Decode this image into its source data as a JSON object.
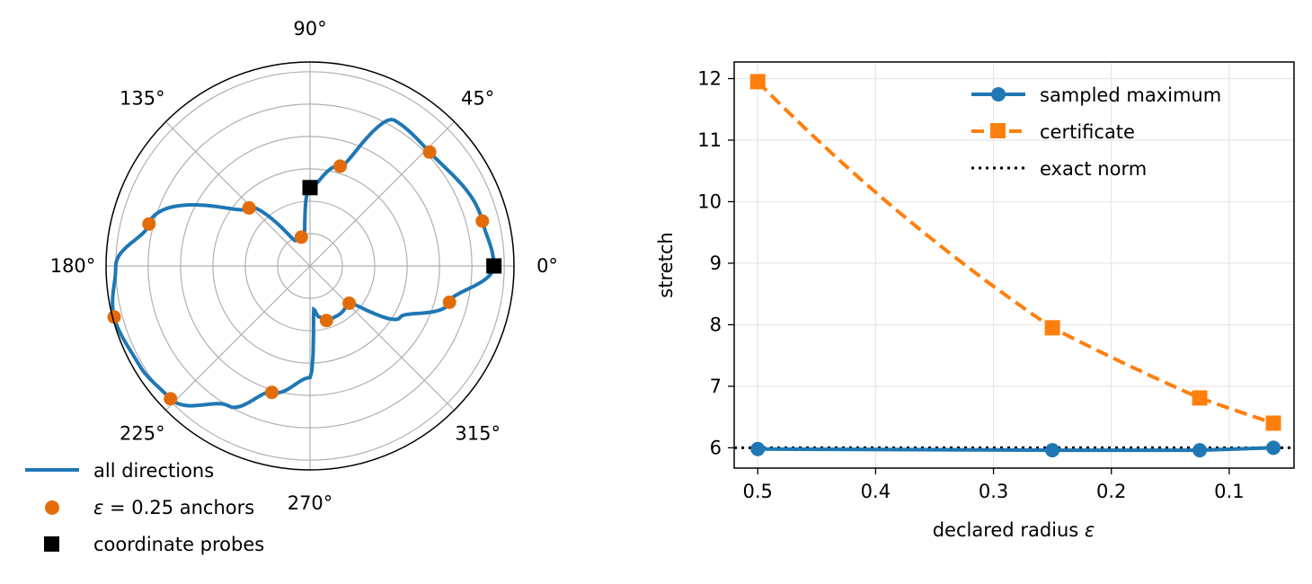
{
  "chart_data": [
    {
      "type": "polar",
      "theta_tick_labels": [
        "0°",
        "45°",
        "90°",
        "135°",
        "180°",
        "225°",
        "270°",
        "315°"
      ],
      "theta_tick_degrees": [
        0,
        45,
        90,
        135,
        180,
        225,
        270,
        315
      ],
      "r_max": 6.3,
      "r_grid": [
        1,
        2,
        3,
        4,
        5,
        6
      ],
      "series_color": "#1f77b4",
      "anchor_color": "#e36c0a",
      "probe_color": "#000000",
      "series": [
        {
          "name": "all directions",
          "kind": "line",
          "description_points_deg": [
            0,
            15,
            30,
            45,
            60,
            75,
            90,
            105,
            120,
            135,
            150,
            165,
            180,
            195,
            210,
            225,
            240,
            255,
            270,
            285,
            300,
            315,
            330,
            345,
            360
          ]
        },
        {
          "name": "ε = 0.25 anchors",
          "kind": "scatter",
          "theta_deg": [
            14.6,
            43.6,
            73.2,
            106.8,
            136.4,
            165.4,
            194.6,
            223.6,
            253.2,
            286.8,
            316.4,
            345.4
          ],
          "r": [
            5.5,
            5.1,
            3.22,
            0.93,
            2.6,
            5.14,
            6.25,
            5.95,
            4.08,
            1.76,
            1.67,
            4.45
          ]
        },
        {
          "name": "coordinate probes",
          "kind": "scatter",
          "theta_deg": [
            0,
            90
          ],
          "r": [
            5.68,
            2.42
          ]
        }
      ],
      "legend": [
        "all directions",
        "ε = 0.25 anchors",
        "coordinate probes"
      ],
      "legend_labels": {
        "line": "all directions",
        "anchors_prefix": "ε",
        "anchors_eq": " = 0.25 anchors",
        "probes": "coordinate probes"
      },
      "legend_placement": "lower-left"
    },
    {
      "type": "line",
      "xlabel_prefix": "declared radius ",
      "xlabel_symbol": "ε",
      "ylabel": "stretch",
      "x": [
        0.5,
        0.25,
        0.125,
        0.0625
      ],
      "xlim": [
        0.52,
        0.045
      ],
      "ylim": [
        5.67,
        12.27
      ],
      "x_ticks": [
        0.5,
        0.4,
        0.3,
        0.2,
        0.1
      ],
      "x_tick_labels": [
        "0.5",
        "0.4",
        "0.3",
        "0.2",
        "0.1"
      ],
      "y_ticks": [
        6,
        7,
        8,
        9,
        10,
        11,
        12
      ],
      "y_tick_labels": [
        "6",
        "7",
        "8",
        "9",
        "10",
        "11",
        "12"
      ],
      "grid": true,
      "series": [
        {
          "name": "sampled maximum",
          "values": [
            5.98,
            5.96,
            5.96,
            6.0
          ],
          "color": "#1f77b4",
          "marker": "circle",
          "style": "solid"
        },
        {
          "name": "certificate",
          "values": [
            11.95,
            7.95,
            6.81,
            6.4
          ],
          "color": "#ff7f0e",
          "marker": "square",
          "style": "dashed"
        },
        {
          "name": "exact norm",
          "constant": 6.0,
          "color": "#000000",
          "style": "dotted"
        }
      ],
      "legend_placement": "top-right"
    }
  ]
}
